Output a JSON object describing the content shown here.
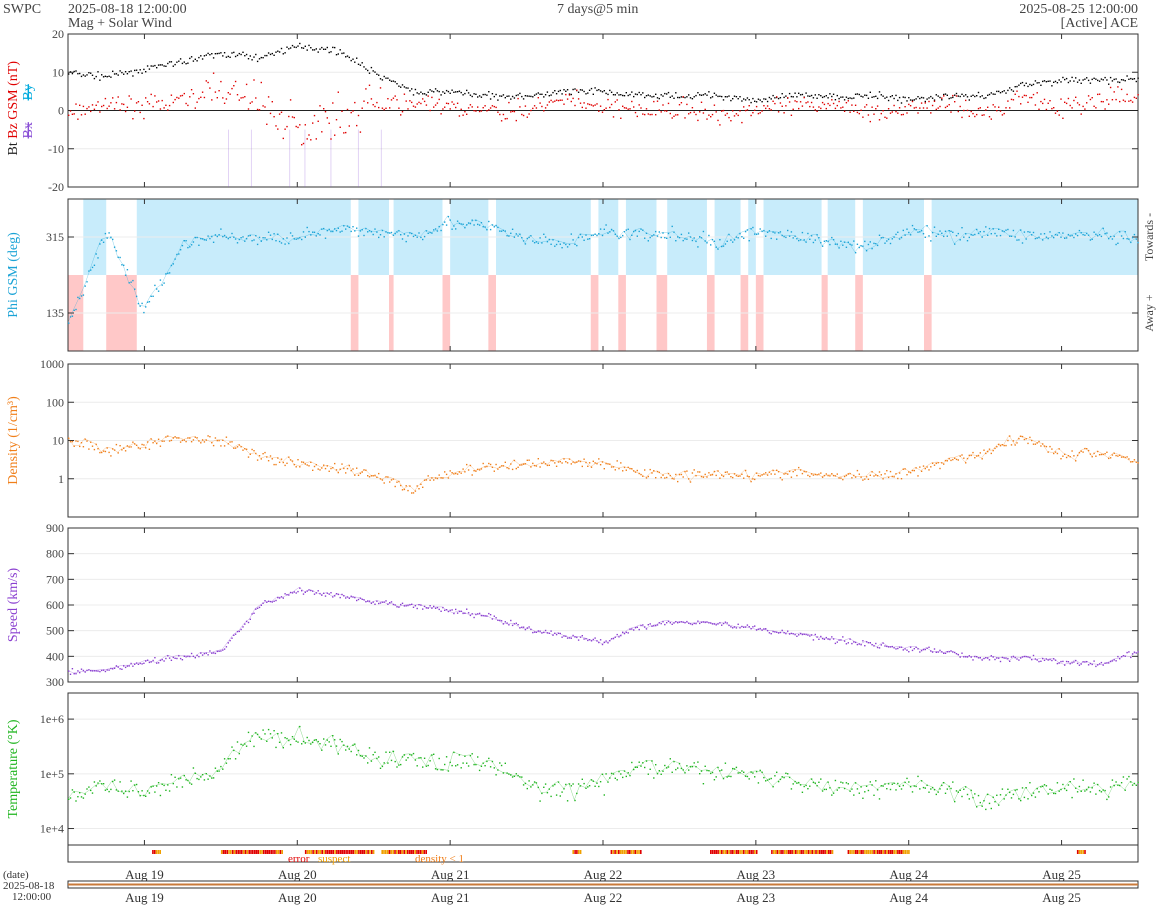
{
  "header": {
    "org": "SWPC",
    "start_time": "2025-08-18 12:00:00",
    "subtitle": "Mag + Solar Wind",
    "span": "7 days@5 min",
    "end_time": "2025-08-25 12:00:00",
    "source": "[Active] ACE"
  },
  "colors": {
    "bt": "#000000",
    "bz": "#e00000",
    "bx": "#8a4fd6",
    "by": "#00aadd",
    "phi": "#1aa3d6",
    "phi_towards_band": "#c8ecfb",
    "phi_away_band": "#ffc8c8",
    "density": "#f07f1a",
    "speed": "#8a3fd0",
    "temperature": "#1fb51f",
    "error": "#e00000",
    "suspect": "#f0a000",
    "density_lt1": "#f07f1a"
  },
  "chart_data": [
    {
      "type": "line",
      "panel": "mag",
      "ylabel": "Bt  Bz GSM (nT)",
      "ylabel_parts": [
        "Bt",
        "Bz GSM (nT)",
        "Bx",
        "By"
      ],
      "ylim": [
        -20,
        20
      ],
      "yticks": [
        "20",
        "10",
        "0",
        "-10",
        "-20"
      ],
      "grid": true,
      "x_days": [
        0,
        0.25,
        0.5,
        0.75,
        1,
        1.25,
        1.5,
        1.75,
        2,
        2.25,
        2.5,
        2.75,
        3,
        3.25,
        3.5,
        3.75,
        4,
        4.25,
        4.5,
        4.75,
        5,
        5.25,
        5.5,
        5.75,
        6,
        6.25,
        6.5,
        6.75,
        7
      ],
      "series": [
        {
          "name": "Bt",
          "values": [
            10,
            9,
            11,
            13,
            15,
            14,
            17,
            16,
            10,
            5,
            5,
            4,
            4,
            5,
            5,
            4,
            4,
            4,
            3,
            4,
            4,
            4,
            3,
            4,
            4,
            7,
            8,
            8,
            8
          ]
        },
        {
          "name": "Bz",
          "values": [
            -1,
            2,
            1,
            3,
            6,
            2,
            -5,
            -2,
            2,
            2,
            1,
            0,
            0,
            3,
            1,
            0,
            1,
            -1,
            0,
            1,
            2,
            -1,
            1,
            2,
            -1,
            4,
            1,
            3,
            4
          ]
        }
      ]
    },
    {
      "type": "scatter",
      "panel": "phi",
      "ylabel": "Phi GSM (deg)",
      "ylim": [
        45,
        405
      ],
      "yticks": [
        "315",
        "135"
      ],
      "right_labels": [
        "Towards -",
        "Away +"
      ],
      "x_days": [
        0,
        0.25,
        0.5,
        0.75,
        1,
        1.25,
        1.5,
        1.75,
        2,
        2.25,
        2.5,
        2.75,
        3,
        3.25,
        3.5,
        3.75,
        4,
        4.25,
        4.5,
        4.75,
        5,
        5.25,
        5.5,
        5.75,
        6,
        6.25,
        6.5,
        6.75,
        7
      ],
      "series": [
        {
          "name": "Phi",
          "values": [
            110,
            330,
            140,
            300,
            320,
            310,
            320,
            330,
            330,
            320,
            350,
            340,
            310,
            300,
            330,
            320,
            320,
            300,
            330,
            320,
            300,
            300,
            330,
            320,
            330,
            320,
            320,
            320,
            305
          ]
        }
      ]
    },
    {
      "type": "line",
      "panel": "density",
      "ylabel": "Density (1/cm³)",
      "yscale": "log",
      "ylim": [
        0.1,
        1000
      ],
      "yticks": [
        "1000",
        "100",
        "10",
        "1"
      ],
      "x_days": [
        0,
        0.25,
        0.5,
        0.75,
        1,
        1.25,
        1.5,
        1.75,
        2,
        2.25,
        2.5,
        2.75,
        3,
        3.25,
        3.5,
        3.75,
        4,
        4.25,
        4.5,
        4.75,
        5,
        5.25,
        5.5,
        5.75,
        6,
        6.25,
        6.5,
        6.75,
        7
      ],
      "series": [
        {
          "name": "Density",
          "values": [
            10,
            5,
            8,
            12,
            10,
            4,
            2.5,
            2,
            1.2,
            0.5,
            1.5,
            2,
            2.5,
            3,
            2.5,
            1.5,
            1.2,
            1.5,
            1.2,
            1.5,
            1.2,
            1.2,
            1.5,
            3,
            5,
            12,
            4,
            5,
            3
          ]
        }
      ]
    },
    {
      "type": "line",
      "panel": "speed",
      "ylabel": "Speed (km/s)",
      "ylim": [
        300,
        900
      ],
      "yticks": [
        "900",
        "800",
        "700",
        "600",
        "500",
        "400",
        "300"
      ],
      "x_days": [
        0,
        0.25,
        0.5,
        0.75,
        1,
        1.25,
        1.5,
        1.75,
        2,
        2.25,
        2.5,
        2.75,
        3,
        3.25,
        3.5,
        3.75,
        4,
        4.25,
        4.5,
        4.75,
        5,
        5.25,
        5.5,
        5.75,
        6,
        6.25,
        6.5,
        6.75,
        7
      ],
      "series": [
        {
          "name": "Speed",
          "values": [
            340,
            350,
            380,
            400,
            420,
            600,
            660,
            640,
            610,
            600,
            580,
            560,
            510,
            480,
            460,
            520,
            540,
            530,
            510,
            490,
            470,
            450,
            430,
            420,
            390,
            400,
            380,
            370,
            420
          ]
        }
      ]
    },
    {
      "type": "line",
      "panel": "temperature",
      "ylabel": "Temperature (°K)",
      "yscale": "log",
      "ylim": [
        5000,
        3000000
      ],
      "yticks": [
        "1e+6",
        "1e+5",
        "1e+4"
      ],
      "x_days": [
        0,
        0.25,
        0.5,
        0.75,
        1,
        1.25,
        1.5,
        1.75,
        2,
        2.25,
        2.5,
        2.75,
        3,
        3.25,
        3.5,
        3.75,
        4,
        4.25,
        4.5,
        4.75,
        5,
        5.25,
        5.5,
        5.75,
        6,
        6.25,
        6.5,
        6.75,
        7
      ],
      "series": [
        {
          "name": "Temperature",
          "values": [
            40000,
            60000,
            45000,
            80000,
            120000,
            500000,
            450000,
            350000,
            200000,
            180000,
            170000,
            160000,
            60000,
            50000,
            70000,
            140000,
            120000,
            110000,
            100000,
            70000,
            60000,
            55000,
            70000,
            50000,
            30000,
            50000,
            60000,
            50000,
            80000
          ]
        }
      ]
    }
  ],
  "status": {
    "legend": [
      "error",
      "suspect",
      "density < 1"
    ]
  },
  "time_axis": {
    "day_labels": [
      "Aug 19",
      "Aug 20",
      "Aug 21",
      "Aug 22",
      "Aug 23",
      "Aug 24",
      "Aug 25"
    ],
    "date_label": "(date)",
    "start_date": "2025-08-18",
    "start_clock": "12:00:00"
  }
}
